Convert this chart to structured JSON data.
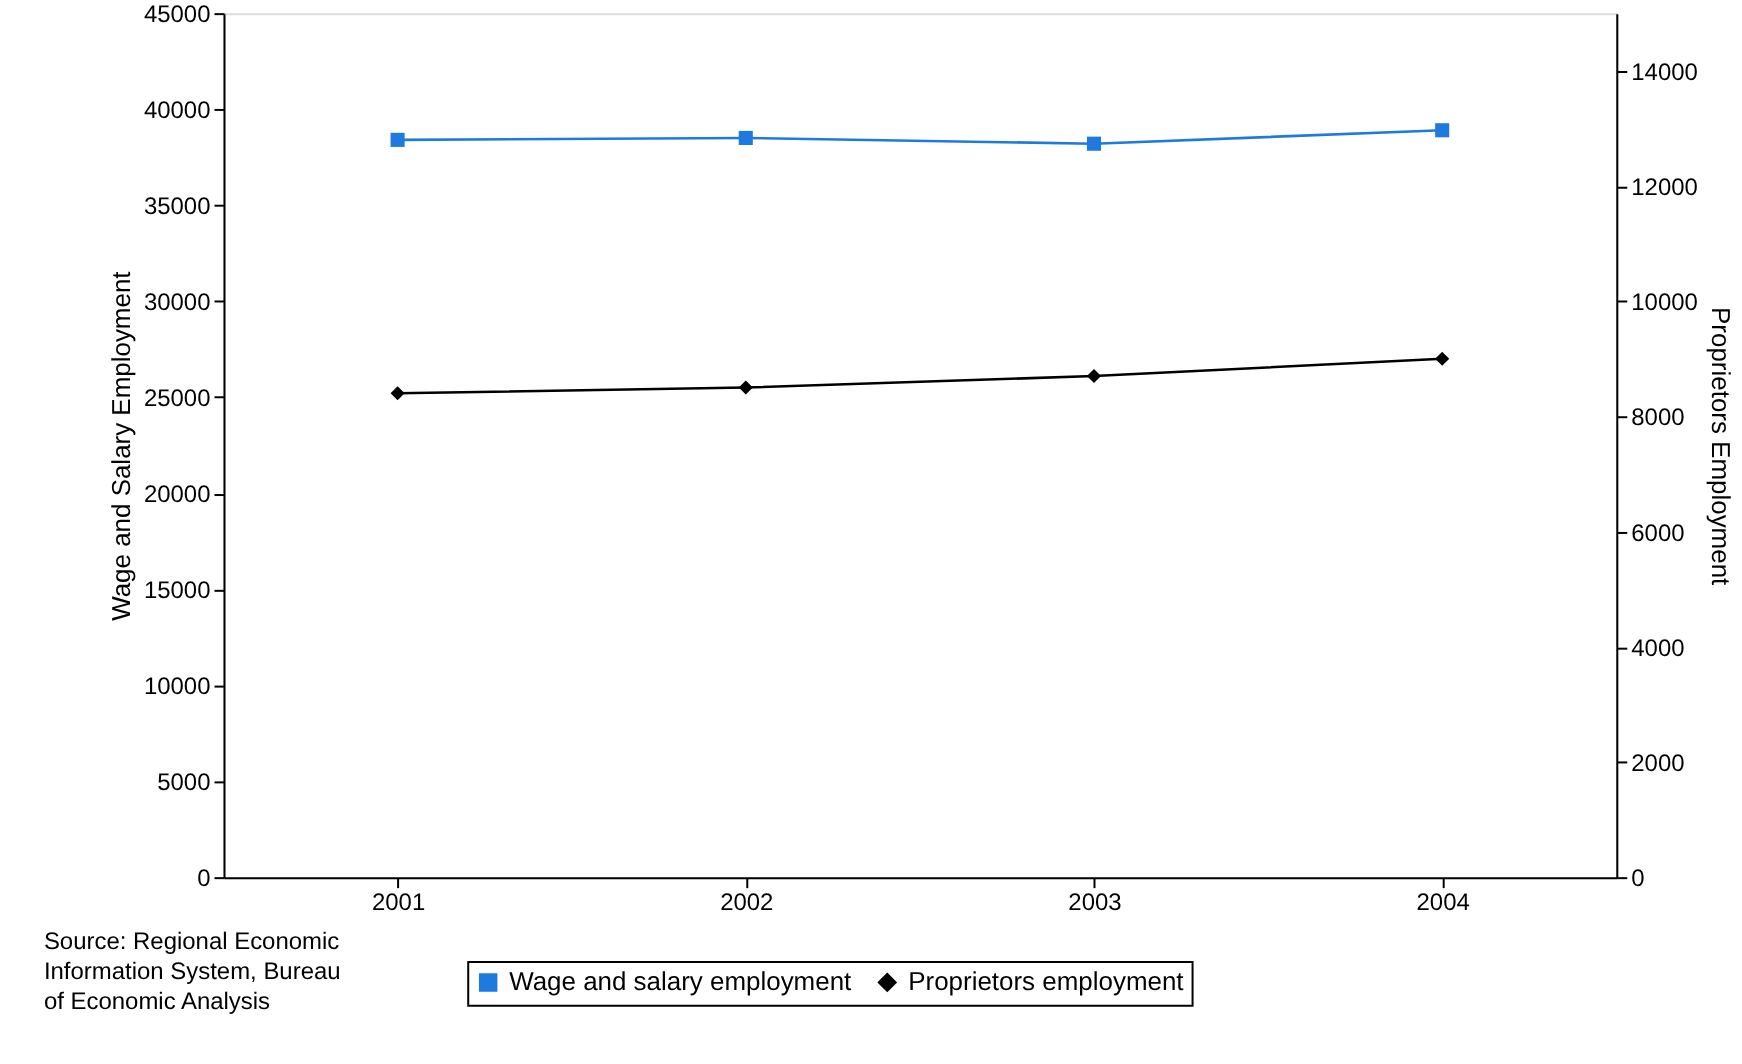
{
  "chart_data": {
    "type": "line",
    "categories": [
      "2001",
      "2002",
      "2003",
      "2004"
    ],
    "ylabel": "Wage and Salary Employment",
    "y2label": "Proprietors Employment",
    "ylim": [
      0,
      45000
    ],
    "yticks": [
      0,
      5000,
      10000,
      15000,
      20000,
      25000,
      30000,
      35000,
      40000,
      45000
    ],
    "y2lim": [
      0,
      15000
    ],
    "y2ticks": [
      0,
      2000,
      4000,
      6000,
      8000,
      10000,
      12000,
      14000
    ],
    "series": [
      {
        "name": "Wage and salary employment",
        "color": "#1f7ae0",
        "marker": "square",
        "values": [
          38400,
          38500,
          38200,
          38900
        ]
      },
      {
        "name": "Proprietors employment",
        "color": "#000000",
        "marker": "diamond",
        "axis": "y2",
        "values": [
          8400,
          8500,
          8700,
          9000
        ]
      }
    ],
    "legend": "bottom",
    "grid": false,
    "annotations": [
      "Source: Regional Economic Information System, Bureau of Economic Analysis"
    ]
  }
}
